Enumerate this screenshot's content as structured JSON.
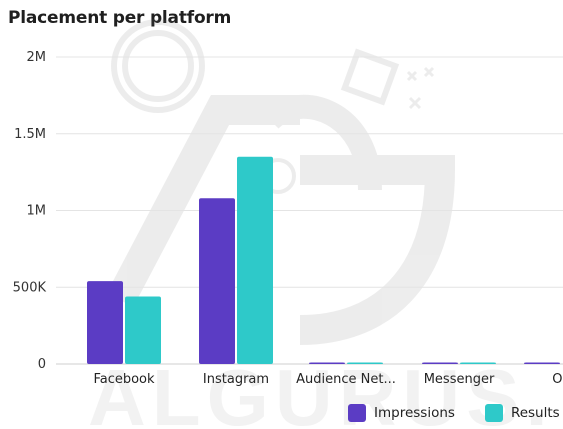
{
  "chart_data": {
    "type": "bar",
    "title": "Placement per platform",
    "categories": [
      "Facebook",
      "Instagram",
      "Audience Net...",
      "Messenger",
      "Oc"
    ],
    "series": [
      {
        "name": "Impressions",
        "color": "#5b3cc4",
        "values": [
          540000,
          1080000,
          3000,
          3000,
          3000
        ]
      },
      {
        "name": "Results",
        "color": "#2ec9c9",
        "values": [
          440000,
          1350000,
          2000,
          2000,
          0
        ]
      }
    ],
    "ylim": [
      0,
      2000000
    ],
    "yticks": [
      {
        "value": 0,
        "label": "0"
      },
      {
        "value": 500000,
        "label": "500K"
      },
      {
        "value": 1000000,
        "label": "1M"
      },
      {
        "value": 1500000,
        "label": "1.5M"
      },
      {
        "value": 2000000,
        "label": "2M"
      }
    ],
    "grid": true,
    "legend": "bottom-right"
  }
}
